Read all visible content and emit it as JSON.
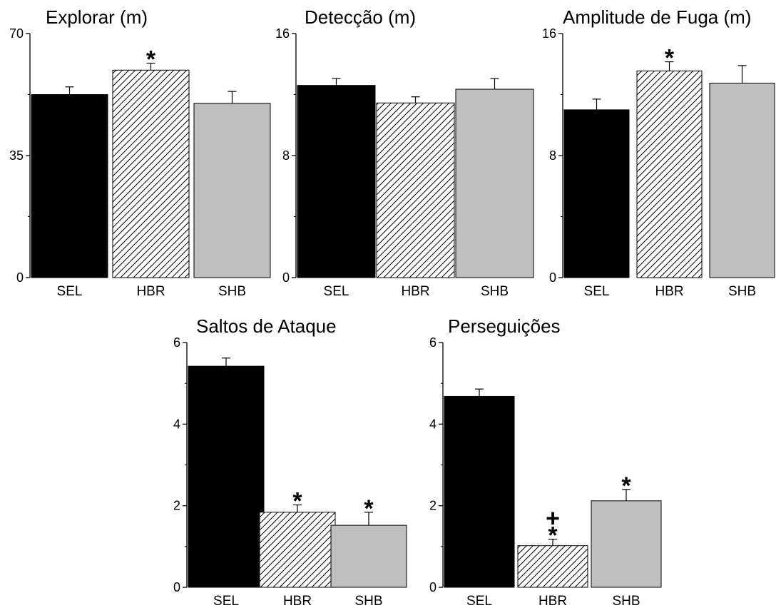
{
  "chart_data": [
    {
      "type": "bar",
      "title": "Explorar (m)",
      "categories": [
        "SEL",
        "HBR",
        "SHB"
      ],
      "values": [
        52.5,
        59.5,
        50
      ],
      "errors": [
        2.2,
        2,
        3.4
      ],
      "ylim": [
        0,
        70
      ],
      "yticks": [
        "0",
        "35",
        "70"
      ],
      "fills": [
        "solid-black",
        "hatched",
        "gray"
      ],
      "markers": [
        "",
        "*",
        ""
      ]
    },
    {
      "type": "bar",
      "title": "Detecção (m)",
      "categories": [
        "SEL",
        "HBR",
        "SHB"
      ],
      "values": [
        12.6,
        11.45,
        12.35
      ],
      "errors": [
        0.45,
        0.4,
        0.7
      ],
      "ylim": [
        0,
        16
      ],
      "yticks": [
        "0",
        "8",
        "16"
      ],
      "fills": [
        "solid-black",
        "hatched",
        "gray"
      ],
      "markers": [
        "",
        "",
        ""
      ]
    },
    {
      "type": "bar",
      "title": "Amplitude de Fuga (m)",
      "categories": [
        "SEL",
        "HBR",
        "SHB"
      ],
      "values": [
        11,
        13.55,
        12.75
      ],
      "errors": [
        0.7,
        0.6,
        1.15
      ],
      "ylim": [
        0,
        16
      ],
      "yticks": [
        "0",
        "8",
        "16"
      ],
      "fills": [
        "solid-black",
        "hatched",
        "gray"
      ],
      "markers": [
        "",
        "*",
        ""
      ]
    },
    {
      "type": "bar",
      "title": "Saltos de Ataque",
      "categories": [
        "SEL",
        "HBR",
        "SHB"
      ],
      "values": [
        5.42,
        1.84,
        1.52
      ],
      "errors": [
        0.2,
        0.18,
        0.32
      ],
      "ylim": [
        0,
        6
      ],
      "yticks": [
        "0",
        "2",
        "4",
        "6"
      ],
      "fills": [
        "solid-black",
        "hatched",
        "gray"
      ],
      "markers": [
        "",
        "*",
        "*"
      ]
    },
    {
      "type": "bar",
      "title": "Perseguições",
      "categories": [
        "SEL",
        "HBR",
        "SHB"
      ],
      "values": [
        4.68,
        1.02,
        2.12
      ],
      "errors": [
        0.18,
        0.16,
        0.28
      ],
      "ylim": [
        0,
        6
      ],
      "yticks": [
        "0",
        "2",
        "4",
        "6"
      ],
      "fills": [
        "solid-black",
        "hatched",
        "gray"
      ],
      "markers": [
        "",
        "+\n*",
        "*"
      ]
    }
  ],
  "colors": {
    "solid-black": "#000000",
    "gray": "#bfbfbf",
    "hatch-background": "#ffffff",
    "hatch-line": "#000000",
    "axis": "#000000"
  }
}
